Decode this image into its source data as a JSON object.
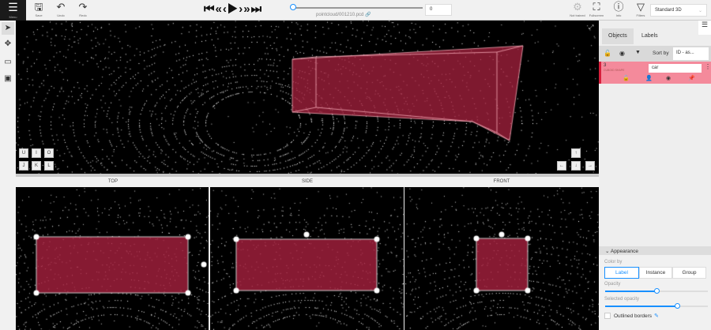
{
  "toolbar": {
    "menu": "Menu",
    "save": "Save",
    "undo": "Undo",
    "redo": "Redo",
    "filename": "pointcloud/001210.pcd",
    "frame": "0",
    "not_trained": "Not trained",
    "fullscreen": "Fullscreen",
    "info": "Info",
    "filters": "Filters",
    "view_mode": "Standard 3D"
  },
  "player": {
    "first": "⏮",
    "back_fast": "«",
    "prev": "‹",
    "play": "▶",
    "next": "›",
    "fwd_fast": "»",
    "last": "⏭",
    "progress": 0
  },
  "views": {
    "top": "TOP",
    "side": "SIDE",
    "front": "FRONT"
  },
  "camera_keys": [
    "U",
    "I",
    "O",
    "J",
    "K",
    "L"
  ],
  "arrow_keys": [
    "↑",
    "←",
    "↓",
    "→"
  ],
  "sidebar": {
    "tabs": [
      "Objects",
      "Labels"
    ],
    "sort_label": "Sort by",
    "sort_value": "ID - as...",
    "object": {
      "id": "3",
      "type": "CUBOID SHAPE",
      "label": "car"
    }
  },
  "appearance": {
    "title": "Appearance",
    "color_by_label": "Color by",
    "color_by_options": [
      "Label",
      "Instance",
      "Group"
    ],
    "color_by_selected": "Label",
    "opacity_label": "Opacity",
    "opacity": 0.5,
    "selected_opacity_label": "Selected opacity",
    "selected_opacity": 0.7,
    "outlined_borders": "Outlined borders",
    "outlined_checked": false
  },
  "colors": {
    "cuboid": "#a8213f",
    "object_row": "#f48a9b",
    "accent": "#1890ff"
  }
}
